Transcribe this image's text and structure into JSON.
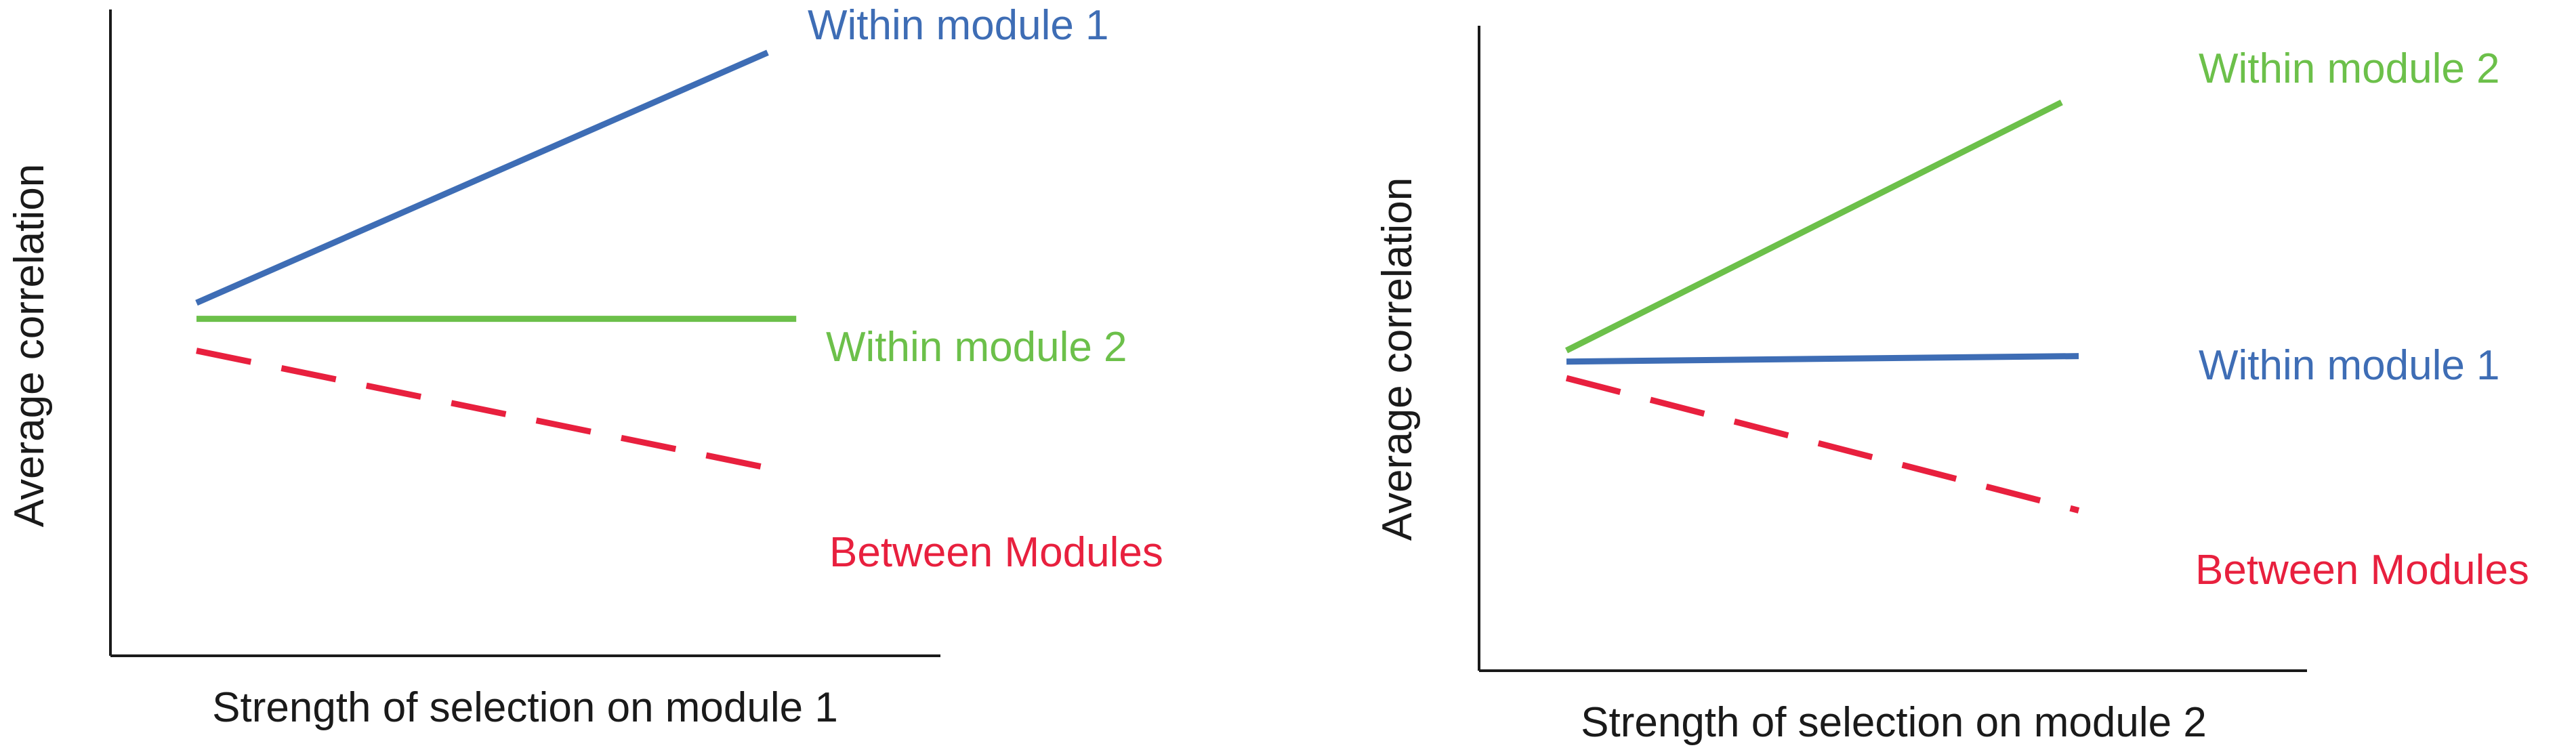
{
  "chart_data": [
    {
      "type": "line",
      "title": "",
      "xlabel": "Strength of selection on module 1",
      "ylabel": "Average correlation",
      "xlim": [
        0,
        1
      ],
      "ylim": [
        0,
        1
      ],
      "grid": false,
      "legend": "direct labels at line ends",
      "series": [
        {
          "name": "Within module 1",
          "color": "#3e6db5",
          "style": "solid",
          "x": [
            0,
            1
          ],
          "y": [
            0.5,
            0.97
          ]
        },
        {
          "name": "Within module 2",
          "color": "#6cc04a",
          "style": "solid",
          "x": [
            0,
            1.05
          ],
          "y": [
            0.47,
            0.47
          ]
        },
        {
          "name": "Between Modules",
          "color": "#e8203e",
          "style": "dashed",
          "x": [
            0,
            1
          ],
          "y": [
            0.41,
            0.19
          ]
        }
      ]
    },
    {
      "type": "line",
      "title": "",
      "xlabel": "Strength of selection on module 2",
      "ylabel": "Average correlation",
      "xlim": [
        0,
        1
      ],
      "ylim": [
        0,
        1
      ],
      "grid": false,
      "legend": "direct labels at line ends",
      "series": [
        {
          "name": "Within module 2",
          "color": "#6cc04a",
          "style": "solid",
          "x": [
            0,
            0.87
          ],
          "y": [
            0.47,
            0.92
          ]
        },
        {
          "name": "Within module 1",
          "color": "#3e6db5",
          "style": "solid",
          "x": [
            0,
            0.9
          ],
          "y": [
            0.45,
            0.46
          ]
        },
        {
          "name": "Between Modules",
          "color": "#e8203e",
          "style": "dashed",
          "x": [
            0,
            0.9
          ],
          "y": [
            0.42,
            0.18
          ]
        }
      ]
    }
  ]
}
